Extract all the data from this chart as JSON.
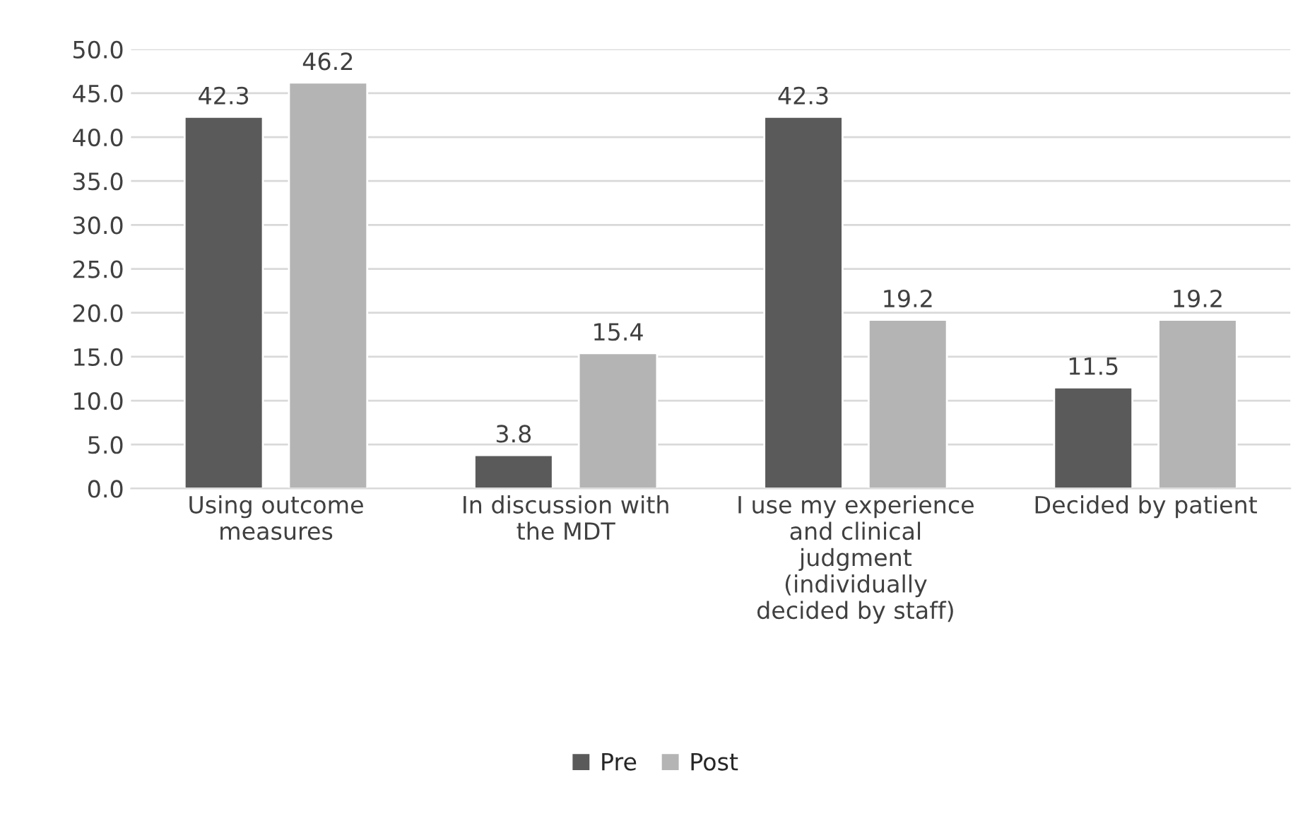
{
  "chart_data": {
    "type": "bar",
    "categories": [
      "Using outcome measures",
      "In discussion with the MDT",
      "I use my experience and clinical judgment (individually decided by staff)",
      "Decided by patient"
    ],
    "series": [
      {
        "name": "Pre",
        "color": "#5a5a5a",
        "values": [
          42.3,
          3.8,
          42.3,
          11.5
        ]
      },
      {
        "name": "Post",
        "color": "#b4b4b4",
        "values": [
          46.2,
          15.4,
          19.2,
          19.2
        ]
      }
    ],
    "ylim": [
      0,
      50
    ],
    "yticks": [
      {
        "value": 0,
        "label": "0.0"
      },
      {
        "value": 5,
        "label": "5.0"
      },
      {
        "value": 10,
        "label": "10.0"
      },
      {
        "value": 15,
        "label": "15.0"
      },
      {
        "value": 20,
        "label": "20.0"
      },
      {
        "value": 25,
        "label": "25.0"
      },
      {
        "value": 30,
        "label": "30.0"
      },
      {
        "value": 35,
        "label": "35.0"
      },
      {
        "value": 40,
        "label": "40.0"
      },
      {
        "value": 45,
        "label": "45.0"
      },
      {
        "value": 50,
        "label": "50.0"
      }
    ],
    "grid": "y",
    "legend": "bottom",
    "data_labels": true
  }
}
